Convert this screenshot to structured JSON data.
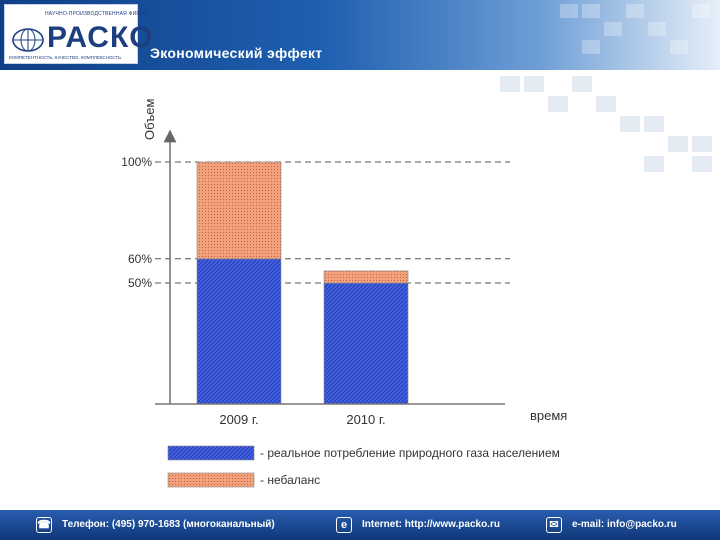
{
  "header": {
    "logo_top": "НАУЧНО-ПРОИЗВОДСТВЕННАЯ ФИРМА",
    "logo_text": "РАСКО",
    "logo_tagline": "КОМПЕТЕНТНОСТЬ, КАЧЕСТВО, КОМПЛЕКСНОСТЬ",
    "slide_title": "Экономический эффект"
  },
  "chart_data": {
    "type": "bar",
    "stacked": true,
    "categories": [
      "2009 г.",
      "2010 г."
    ],
    "series": [
      {
        "name": "- реальное потребление природного газа населением",
        "values": [
          60,
          50
        ],
        "color": "#3f5fe6"
      },
      {
        "name": "- небаланс",
        "values": [
          40,
          5
        ],
        "color": "#f4a07a"
      }
    ],
    "ylabel": "Объем",
    "xlabel": "время",
    "ylim": [
      0,
      100
    ],
    "y_reference_labels": [
      {
        "value": 100,
        "label": "100%"
      },
      {
        "value": 60,
        "label": "60%"
      },
      {
        "value": 50,
        "label": "50%"
      }
    ],
    "reference_lines": "dashed",
    "legend_position": "bottom"
  },
  "footer": {
    "phone": "Телефон: (495) 970-1683 (многоканальный)",
    "internet": "Internet: http://www.packo.ru",
    "email": "e-mail: info@packo.ru"
  }
}
